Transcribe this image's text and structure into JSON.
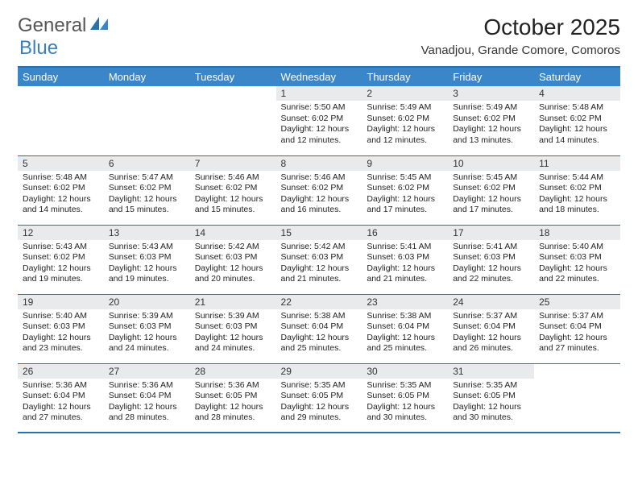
{
  "logo": {
    "word1": "General",
    "word2": "Blue",
    "accent": "#3b86c8",
    "text_gray": "#555555"
  },
  "title": "October 2025",
  "location": "Vanadjou, Grande Comore, Comoros",
  "colors": {
    "header_bg": "#3b86c8",
    "header_text": "#ffffff",
    "rule": "#2f6fa8",
    "daynum_bg": "#e9eaec",
    "body_text": "#222222",
    "page_bg": "#ffffff"
  },
  "fonts": {
    "title_pt": 28,
    "location_pt": 15,
    "dayhead_pt": 13,
    "daynum_pt": 12,
    "body_pt": 10.5
  },
  "dayHeaders": [
    "Sunday",
    "Monday",
    "Tuesday",
    "Wednesday",
    "Thursday",
    "Friday",
    "Saturday"
  ],
  "weeks": [
    [
      null,
      null,
      null,
      {
        "n": "1",
        "sr": "5:50 AM",
        "ss": "6:02 PM",
        "dl": "12 hours and 12 minutes."
      },
      {
        "n": "2",
        "sr": "5:49 AM",
        "ss": "6:02 PM",
        "dl": "12 hours and 12 minutes."
      },
      {
        "n": "3",
        "sr": "5:49 AM",
        "ss": "6:02 PM",
        "dl": "12 hours and 13 minutes."
      },
      {
        "n": "4",
        "sr": "5:48 AM",
        "ss": "6:02 PM",
        "dl": "12 hours and 14 minutes."
      }
    ],
    [
      {
        "n": "5",
        "sr": "5:48 AM",
        "ss": "6:02 PM",
        "dl": "12 hours and 14 minutes."
      },
      {
        "n": "6",
        "sr": "5:47 AM",
        "ss": "6:02 PM",
        "dl": "12 hours and 15 minutes."
      },
      {
        "n": "7",
        "sr": "5:46 AM",
        "ss": "6:02 PM",
        "dl": "12 hours and 15 minutes."
      },
      {
        "n": "8",
        "sr": "5:46 AM",
        "ss": "6:02 PM",
        "dl": "12 hours and 16 minutes."
      },
      {
        "n": "9",
        "sr": "5:45 AM",
        "ss": "6:02 PM",
        "dl": "12 hours and 17 minutes."
      },
      {
        "n": "10",
        "sr": "5:45 AM",
        "ss": "6:02 PM",
        "dl": "12 hours and 17 minutes."
      },
      {
        "n": "11",
        "sr": "5:44 AM",
        "ss": "6:02 PM",
        "dl": "12 hours and 18 minutes."
      }
    ],
    [
      {
        "n": "12",
        "sr": "5:43 AM",
        "ss": "6:02 PM",
        "dl": "12 hours and 19 minutes."
      },
      {
        "n": "13",
        "sr": "5:43 AM",
        "ss": "6:03 PM",
        "dl": "12 hours and 19 minutes."
      },
      {
        "n": "14",
        "sr": "5:42 AM",
        "ss": "6:03 PM",
        "dl": "12 hours and 20 minutes."
      },
      {
        "n": "15",
        "sr": "5:42 AM",
        "ss": "6:03 PM",
        "dl": "12 hours and 21 minutes."
      },
      {
        "n": "16",
        "sr": "5:41 AM",
        "ss": "6:03 PM",
        "dl": "12 hours and 21 minutes."
      },
      {
        "n": "17",
        "sr": "5:41 AM",
        "ss": "6:03 PM",
        "dl": "12 hours and 22 minutes."
      },
      {
        "n": "18",
        "sr": "5:40 AM",
        "ss": "6:03 PM",
        "dl": "12 hours and 22 minutes."
      }
    ],
    [
      {
        "n": "19",
        "sr": "5:40 AM",
        "ss": "6:03 PM",
        "dl": "12 hours and 23 minutes."
      },
      {
        "n": "20",
        "sr": "5:39 AM",
        "ss": "6:03 PM",
        "dl": "12 hours and 24 minutes."
      },
      {
        "n": "21",
        "sr": "5:39 AM",
        "ss": "6:03 PM",
        "dl": "12 hours and 24 minutes."
      },
      {
        "n": "22",
        "sr": "5:38 AM",
        "ss": "6:04 PM",
        "dl": "12 hours and 25 minutes."
      },
      {
        "n": "23",
        "sr": "5:38 AM",
        "ss": "6:04 PM",
        "dl": "12 hours and 25 minutes."
      },
      {
        "n": "24",
        "sr": "5:37 AM",
        "ss": "6:04 PM",
        "dl": "12 hours and 26 minutes."
      },
      {
        "n": "25",
        "sr": "5:37 AM",
        "ss": "6:04 PM",
        "dl": "12 hours and 27 minutes."
      }
    ],
    [
      {
        "n": "26",
        "sr": "5:36 AM",
        "ss": "6:04 PM",
        "dl": "12 hours and 27 minutes."
      },
      {
        "n": "27",
        "sr": "5:36 AM",
        "ss": "6:04 PM",
        "dl": "12 hours and 28 minutes."
      },
      {
        "n": "28",
        "sr": "5:36 AM",
        "ss": "6:05 PM",
        "dl": "12 hours and 28 minutes."
      },
      {
        "n": "29",
        "sr": "5:35 AM",
        "ss": "6:05 PM",
        "dl": "12 hours and 29 minutes."
      },
      {
        "n": "30",
        "sr": "5:35 AM",
        "ss": "6:05 PM",
        "dl": "12 hours and 30 minutes."
      },
      {
        "n": "31",
        "sr": "5:35 AM",
        "ss": "6:05 PM",
        "dl": "12 hours and 30 minutes."
      },
      null
    ]
  ],
  "labels": {
    "sunrise": "Sunrise: ",
    "sunset": "Sunset: ",
    "daylight": "Daylight: "
  }
}
